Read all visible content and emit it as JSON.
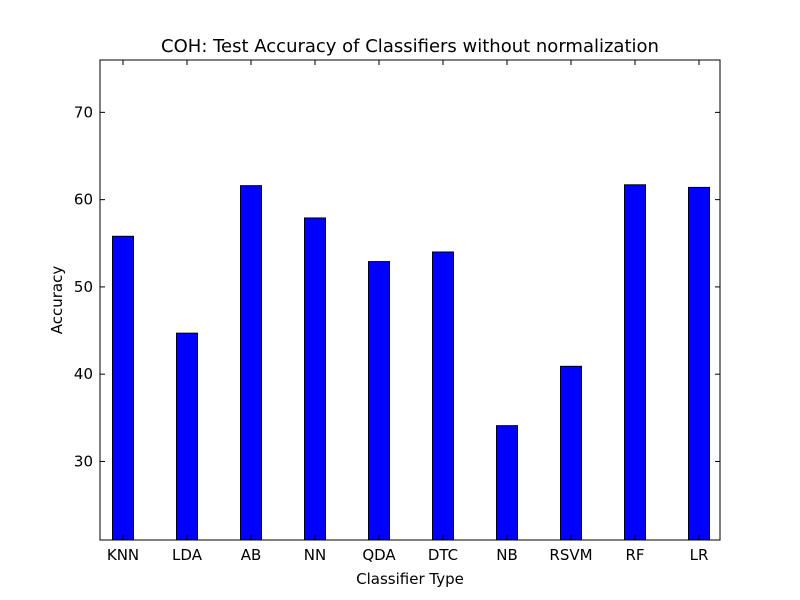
{
  "chart_data": {
    "type": "bar",
    "title": "COH: Test Accuracy of Classifiers without normalization",
    "xlabel": "Classifier Type",
    "ylabel": "Accuracy",
    "categories": [
      "KNN",
      "LDA",
      "AB",
      "NN",
      "QDA",
      "DTC",
      "NB",
      "RSVM",
      "RF",
      "LR"
    ],
    "values": [
      55.8,
      44.7,
      61.6,
      57.9,
      52.9,
      54.0,
      34.1,
      40.9,
      61.7,
      61.4
    ],
    "ylim": [
      21,
      76
    ],
    "yticks": [
      "30",
      "40",
      "50",
      "60",
      "70"
    ],
    "bar_color": "#0000ff",
    "edge_color": "#000000",
    "grid": false,
    "legend": "none"
  }
}
